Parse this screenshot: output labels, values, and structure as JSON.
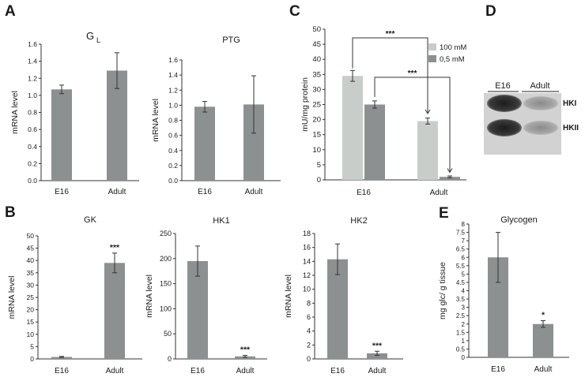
{
  "panel_letters": {
    "A": "A",
    "B": "B",
    "C": "C",
    "D": "D",
    "E": "E"
  },
  "colors": {
    "bar": "#8c9090",
    "bar_light": "#c8cdca",
    "axis": "#333333",
    "text": "#1a1a1a"
  },
  "chart_data": [
    {
      "id": "GL",
      "type": "bar",
      "title": "G",
      "title_subscript": "L",
      "ylabel": "mRNA level",
      "categories": [
        "E16",
        "Adult"
      ],
      "values": [
        1.07,
        1.29
      ],
      "errors": [
        0.05,
        0.21
      ],
      "ylim": [
        0,
        1.6
      ],
      "yticks": [
        "0.0",
        "0.2",
        "0.4",
        "0.6",
        "0.8",
        "1.0",
        "1.2",
        "1.4",
        "1.6"
      ],
      "significance": [
        "",
        ""
      ]
    },
    {
      "id": "PTG",
      "type": "bar",
      "title": "PTG",
      "ylabel": "mRNA level",
      "categories": [
        "E16",
        "Adult"
      ],
      "values": [
        0.98,
        1.01
      ],
      "errors": [
        0.07,
        0.38
      ],
      "ylim": [
        0,
        1.6
      ],
      "yticks": [
        "0.0",
        "0.2",
        "0.4",
        "0.6",
        "0.8",
        "1.0",
        "1.2",
        "1.4",
        "1.6"
      ],
      "significance": [
        "",
        ""
      ]
    },
    {
      "id": "C",
      "type": "bar",
      "title": "",
      "ylabel": "mU/mg protein",
      "categories": [
        "E16",
        "Adult"
      ],
      "series": [
        {
          "name": "100 mM",
          "values": [
            34.5,
            19.5
          ],
          "errors": [
            1.8,
            1.0
          ]
        },
        {
          "name": "0,5 mM",
          "values": [
            25.0,
            1.0
          ],
          "errors": [
            1.2,
            0.3
          ]
        }
      ],
      "ylim": [
        0,
        50
      ],
      "yticks": [
        "0",
        "5",
        "10",
        "15",
        "20",
        "25",
        "30",
        "35",
        "40",
        "45",
        "50"
      ],
      "legend": "top-right",
      "brackets": [
        "***",
        "***"
      ]
    },
    {
      "id": "GK",
      "type": "bar",
      "title": "GK",
      "ylabel": "mRNA level",
      "categories": [
        "E16",
        "Adult"
      ],
      "values": [
        0.8,
        39.0
      ],
      "errors": [
        0.2,
        4.0
      ],
      "ylim": [
        0,
        50
      ],
      "yticks": [
        "0",
        "5",
        "10",
        "15",
        "20",
        "25",
        "30",
        "35",
        "40",
        "45",
        "50"
      ],
      "significance": [
        "",
        "***"
      ]
    },
    {
      "id": "HK1",
      "type": "bar",
      "title": "HK1",
      "ylabel": "mRNA level",
      "categories": [
        "E16",
        "Adult"
      ],
      "values": [
        195,
        5
      ],
      "errors": [
        30,
        2
      ],
      "ylim": [
        0,
        250
      ],
      "yticks": [
        "0",
        "50",
        "100",
        "150",
        "200",
        "250"
      ],
      "significance": [
        "",
        "***"
      ]
    },
    {
      "id": "HK2",
      "type": "bar",
      "title": "HK2",
      "ylabel": "mRNA level",
      "categories": [
        "E16",
        "Adult"
      ],
      "values": [
        14.3,
        0.8
      ],
      "errors": [
        2.2,
        0.3
      ],
      "ylim": [
        0,
        18
      ],
      "yticks": [
        "0",
        "2",
        "4",
        "6",
        "8",
        "10",
        "12",
        "14",
        "16",
        "18"
      ],
      "significance": [
        "",
        "***"
      ]
    },
    {
      "id": "Glycogen",
      "type": "bar",
      "title": "Glycogen",
      "ylabel": "mg glc/ g tissue",
      "categories": [
        "E16",
        "Adult"
      ],
      "values": [
        6.0,
        2.0
      ],
      "errors": [
        1.5,
        0.2
      ],
      "ylim": [
        0,
        8
      ],
      "yticks": [
        "0",
        "0.5",
        "1",
        "1.5",
        "2",
        "2.5",
        "3",
        "3.5",
        "4",
        "4.5",
        "5",
        "5.5",
        "6",
        "6.5",
        "7",
        "7.5",
        "8"
      ],
      "significance": [
        "",
        "*"
      ]
    }
  ],
  "blot": {
    "lanes": [
      "E16",
      "Adult"
    ],
    "bands": [
      "HKI",
      "HKII"
    ]
  }
}
